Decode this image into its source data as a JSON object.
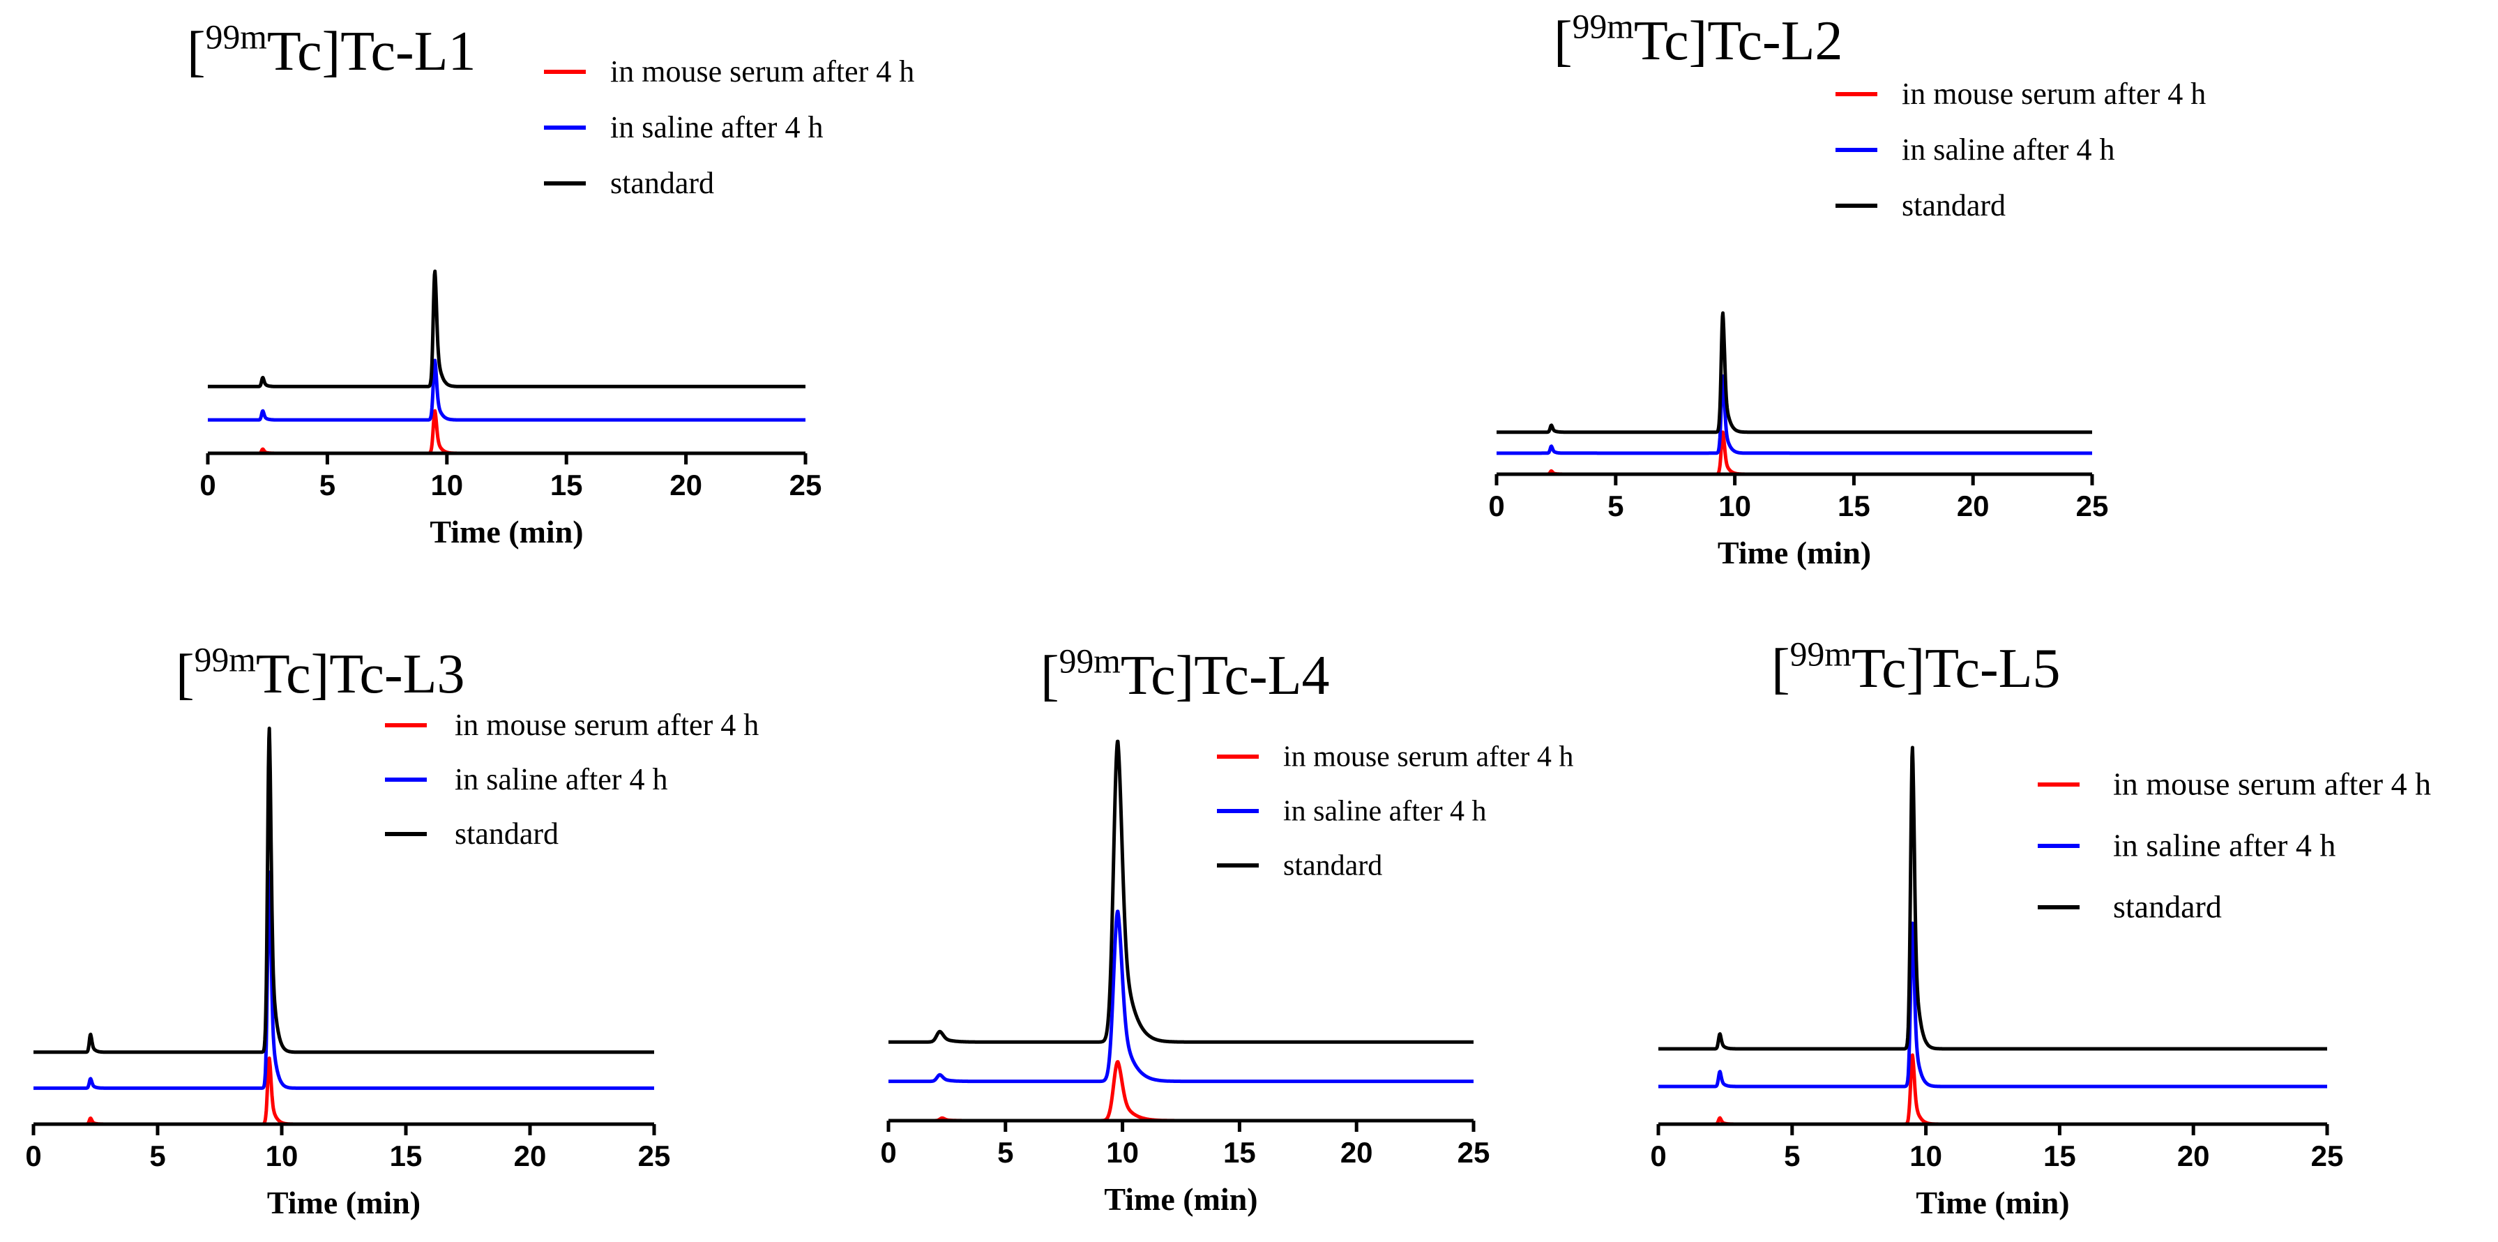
{
  "colors": {
    "serum": "#ff0000",
    "saline": "#0000ff",
    "standard": "#000000",
    "axis": "#000000"
  },
  "chart_data": [
    {
      "type": "line",
      "title": {
        "prefix": "[",
        "superscript": "99m",
        "suffix": "Tc]Tc-L1"
      },
      "xlabel": "Time (min)",
      "ylabel": "",
      "xlim": [
        0,
        25
      ],
      "xticks": [
        "0",
        "5",
        "10",
        "15",
        "20",
        "25"
      ],
      "legend": [
        "in mouse serum after 4 h",
        "in saline after 4 h",
        "standard"
      ],
      "series": [
        {
          "name": "in mouse serum after 4 h",
          "color": "#ff0000",
          "baseline": 0,
          "peaks": [
            {
              "x": 2.3,
              "h": 0.07,
              "w": 0.05
            },
            {
              "x": 9.5,
              "h": 0.7,
              "w": 0.07
            }
          ]
        },
        {
          "name": "in saline after 4 h",
          "color": "#0000ff",
          "baseline": 0.55,
          "peaks": [
            {
              "x": 2.3,
              "h": 0.15,
              "w": 0.05
            },
            {
              "x": 9.5,
              "h": 0.98,
              "w": 0.07
            }
          ]
        },
        {
          "name": "standard",
          "color": "#000000",
          "baseline": 1.1,
          "peaks": [
            {
              "x": 2.3,
              "h": 0.15,
              "w": 0.05
            },
            {
              "x": 9.5,
              "h": 1.9,
              "w": 0.07
            }
          ]
        }
      ]
    },
    {
      "type": "line",
      "title": {
        "prefix": "[",
        "superscript": "99m",
        "suffix": "Tc]Tc-L2"
      },
      "xlabel": "Time (min)",
      "ylabel": "",
      "xlim": [
        0,
        25
      ],
      "xticks": [
        "0",
        "5",
        "10",
        "15",
        "20",
        "25"
      ],
      "legend": [
        "in mouse serum after 4 h",
        "in saline after 4 h",
        "standard"
      ],
      "series": [
        {
          "name": "in mouse serum after 4 h",
          "color": "#ff0000",
          "baseline": 0,
          "peaks": [
            {
              "x": 2.3,
              "h": 0.07,
              "w": 0.05
            },
            {
              "x": 9.5,
              "h": 0.9,
              "w": 0.07
            }
          ]
        },
        {
          "name": "in saline after 4 h",
          "color": "#0000ff",
          "baseline": 0.45,
          "peaks": [
            {
              "x": 2.3,
              "h": 0.15,
              "w": 0.05
            },
            {
              "x": 9.5,
              "h": 1.65,
              "w": 0.07
            }
          ]
        },
        {
          "name": "standard",
          "color": "#000000",
          "baseline": 0.9,
          "peaks": [
            {
              "x": 2.3,
              "h": 0.15,
              "w": 0.05
            },
            {
              "x": 9.5,
              "h": 2.55,
              "w": 0.07
            }
          ]
        }
      ]
    },
    {
      "type": "line",
      "title": {
        "prefix": "[",
        "superscript": "99m",
        "suffix": "Tc]Tc-L3"
      },
      "xlabel": "Time (min)",
      "ylabel": "",
      "xlim": [
        0,
        25
      ],
      "xticks": [
        "0",
        "5",
        "10",
        "15",
        "20",
        "25"
      ],
      "legend": [
        "in mouse serum after 4 h",
        "in saline after 4 h",
        "standard"
      ],
      "series": [
        {
          "name": "in mouse serum after 4 h",
          "color": "#ff0000",
          "baseline": 0,
          "peaks": [
            {
              "x": 2.3,
              "h": 0.05,
              "w": 0.05
            },
            {
              "x": 9.5,
              "h": 0.55,
              "w": 0.07
            }
          ]
        },
        {
          "name": "in saline after 4 h",
          "color": "#0000ff",
          "baseline": 0.3,
          "peaks": [
            {
              "x": 2.3,
              "h": 0.08,
              "w": 0.05
            },
            {
              "x": 9.5,
              "h": 1.8,
              "w": 0.07
            }
          ]
        },
        {
          "name": "standard",
          "color": "#000000",
          "baseline": 0.6,
          "peaks": [
            {
              "x": 2.3,
              "h": 0.15,
              "w": 0.05
            },
            {
              "x": 9.5,
              "h": 2.7,
              "w": 0.07
            }
          ]
        }
      ]
    },
    {
      "type": "line",
      "title": {
        "prefix": "[",
        "superscript": "99m",
        "suffix": "Tc]Tc-L4"
      },
      "xlabel": "Time (min)",
      "ylabel": "",
      "xlim": [
        0,
        25
      ],
      "xticks": [
        "0",
        "5",
        "10",
        "15",
        "20",
        "25"
      ],
      "legend": [
        "in mouse serum after 4 h",
        "in saline after 4 h",
        "standard"
      ],
      "series": [
        {
          "name": "in mouse serum after 4 h",
          "color": "#ff0000",
          "baseline": 0,
          "peaks": [
            {
              "x": 2.3,
              "h": 0.02,
              "w": 0.1
            },
            {
              "x": 9.8,
              "h": 0.45,
              "w": 0.18
            }
          ]
        },
        {
          "name": "in saline after 4 h",
          "color": "#0000ff",
          "baseline": 0.3,
          "peaks": [
            {
              "x": 2.2,
              "h": 0.05,
              "w": 0.12
            },
            {
              "x": 9.8,
              "h": 1.3,
              "w": 0.18
            }
          ]
        },
        {
          "name": "standard",
          "color": "#000000",
          "baseline": 0.6,
          "peaks": [
            {
              "x": 2.2,
              "h": 0.08,
              "w": 0.14
            },
            {
              "x": 9.8,
              "h": 2.3,
              "w": 0.18
            }
          ]
        }
      ]
    },
    {
      "type": "line",
      "title": {
        "prefix": "[",
        "superscript": "99m",
        "suffix": "Tc]Tc-L5"
      },
      "xlabel": "Time (min)",
      "ylabel": "",
      "xlim": [
        0,
        25
      ],
      "xticks": [
        "0",
        "5",
        "10",
        "15",
        "20",
        "25"
      ],
      "legend": [
        "in mouse serum after 4 h",
        "in saline after 4 h",
        "standard"
      ],
      "series": [
        {
          "name": "in mouse serum after 4 h",
          "color": "#ff0000",
          "baseline": 0,
          "peaks": [
            {
              "x": 2.3,
              "h": 0.05,
              "w": 0.05
            },
            {
              "x": 9.5,
              "h": 0.55,
              "w": 0.07
            }
          ]
        },
        {
          "name": "in saline after 4 h",
          "color": "#0000ff",
          "baseline": 0.3,
          "peaks": [
            {
              "x": 2.3,
              "h": 0.12,
              "w": 0.05
            },
            {
              "x": 9.5,
              "h": 1.3,
              "w": 0.07
            }
          ]
        },
        {
          "name": "standard",
          "color": "#000000",
          "baseline": 0.6,
          "peaks": [
            {
              "x": 2.3,
              "h": 0.12,
              "w": 0.05
            },
            {
              "x": 9.5,
              "h": 2.4,
              "w": 0.07
            }
          ]
        }
      ]
    }
  ]
}
